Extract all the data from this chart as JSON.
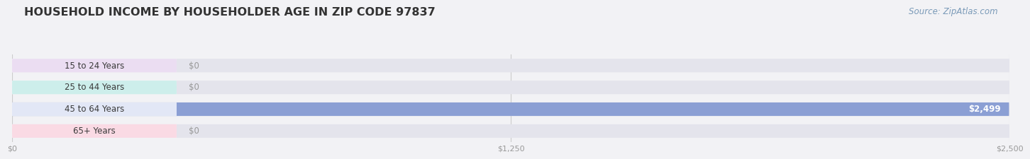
{
  "title": "HOUSEHOLD INCOME BY HOUSEHOLDER AGE IN ZIP CODE 97837",
  "source": "Source: ZipAtlas.com",
  "categories": [
    "15 to 24 Years",
    "25 to 44 Years",
    "45 to 64 Years",
    "65+ Years"
  ],
  "values": [
    0,
    0,
    2499,
    0
  ],
  "bar_colors": [
    "#c9a8d4",
    "#7ecec4",
    "#8b9fd4",
    "#f4a8c0"
  ],
  "label_bg_colors": [
    "#e8d8f0",
    "#c5ece8",
    "#dde3f5",
    "#fad4e0"
  ],
  "xmax": 2500,
  "xtick_labels": [
    "$0",
    "$1,250",
    "$2,500"
  ],
  "xtick_values": [
    0,
    1250,
    2500
  ],
  "background_color": "#f2f2f5",
  "bar_background_color": "#e4e4ec",
  "label_bg_white": "#ffffff",
  "title_fontsize": 11.5,
  "source_fontsize": 8.5,
  "label_fontsize": 8.5,
  "value_fontsize": 8.5
}
